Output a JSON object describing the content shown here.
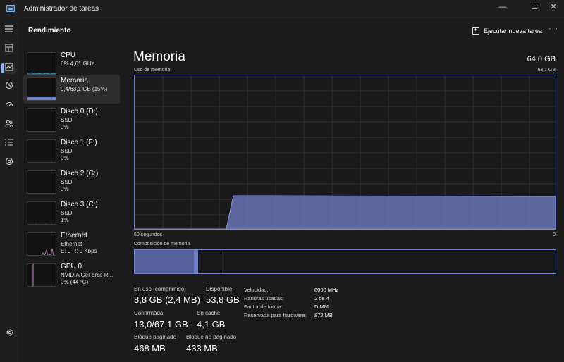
{
  "window": {
    "title": "Administrador de tareas",
    "minimize_glyph": "—",
    "maximize_glyph": "☐",
    "close_glyph": "✕"
  },
  "header": {
    "title": "Rendimiento",
    "run_task_label": "Ejecutar nueva tarea",
    "more_glyph": "···"
  },
  "rail": {
    "icons": [
      "menu-icon",
      "processes-icon",
      "performance-icon",
      "app-history-icon",
      "startup-icon",
      "users-icon",
      "details-icon",
      "services-icon",
      "settings-icon"
    ]
  },
  "devices": [
    {
      "name": "CPU",
      "sub1": "6% 4,61 GHz",
      "sub2": "",
      "color": "#4aa0d0"
    },
    {
      "name": "Memoria",
      "sub1": "9,4/63,1 GB (15%)",
      "sub2": "",
      "color": "#7280c8"
    },
    {
      "name": "Disco 0 (D:)",
      "sub1": "SSD",
      "sub2": "0%",
      "color": "#4fb35a"
    },
    {
      "name": "Disco 1 (F:)",
      "sub1": "SSD",
      "sub2": "0%",
      "color": "#4fb35a"
    },
    {
      "name": "Disco 2 (G:)",
      "sub1": "SSD",
      "sub2": "0%",
      "color": "#4fb35a"
    },
    {
      "name": "Disco 3 (C:)",
      "sub1": "SSD",
      "sub2": "1%",
      "color": "#4fb35a"
    },
    {
      "name": "Ethernet",
      "sub1": "Ethernet",
      "sub2": "E: 0 R: 0 Kbps",
      "color": "#c98ac6"
    },
    {
      "name": "GPU 0",
      "sub1": "NVIDIA GeForce R...",
      "sub2": "0% (44 °C)",
      "color": "#c98ac6"
    }
  ],
  "panel": {
    "title": "Memoria",
    "total": "64,0 GB",
    "usage_label": "Uso de memoria",
    "usage_max": "63,1 GB",
    "time_left": "60 segundos",
    "time_right": "0",
    "composition_label": "Composición de memoria",
    "accent": "#7280c8",
    "usage_fraction": 0.15,
    "composition": {
      "in_use_fraction": 0.14,
      "modified_fraction": 0.01,
      "standby_fraction": 0.055
    }
  },
  "stats": {
    "in_use_label": "En uso (comprimido)",
    "in_use_value": "8,8 GB (2,4 MB)",
    "available_label": "Disponible",
    "available_value": "53,8 GB",
    "committed_label": "Confirmada",
    "committed_value": "13,0/67,1 GB",
    "cached_label": "En caché",
    "cached_value": "4,1 GB",
    "paged_label": "Bloque paginado",
    "paged_value": "468 MB",
    "nonpaged_label": "Bloque no paginado",
    "nonpaged_value": "433 MB"
  },
  "specs": [
    {
      "label": "Velocidad:",
      "value": "6000 MHz"
    },
    {
      "label": "Ranuras usadas:",
      "value": "2 de 4"
    },
    {
      "label": "Factor de forma:",
      "value": "DIMM"
    },
    {
      "label": "Reservada para hardware:",
      "value": "872 MB"
    }
  ]
}
